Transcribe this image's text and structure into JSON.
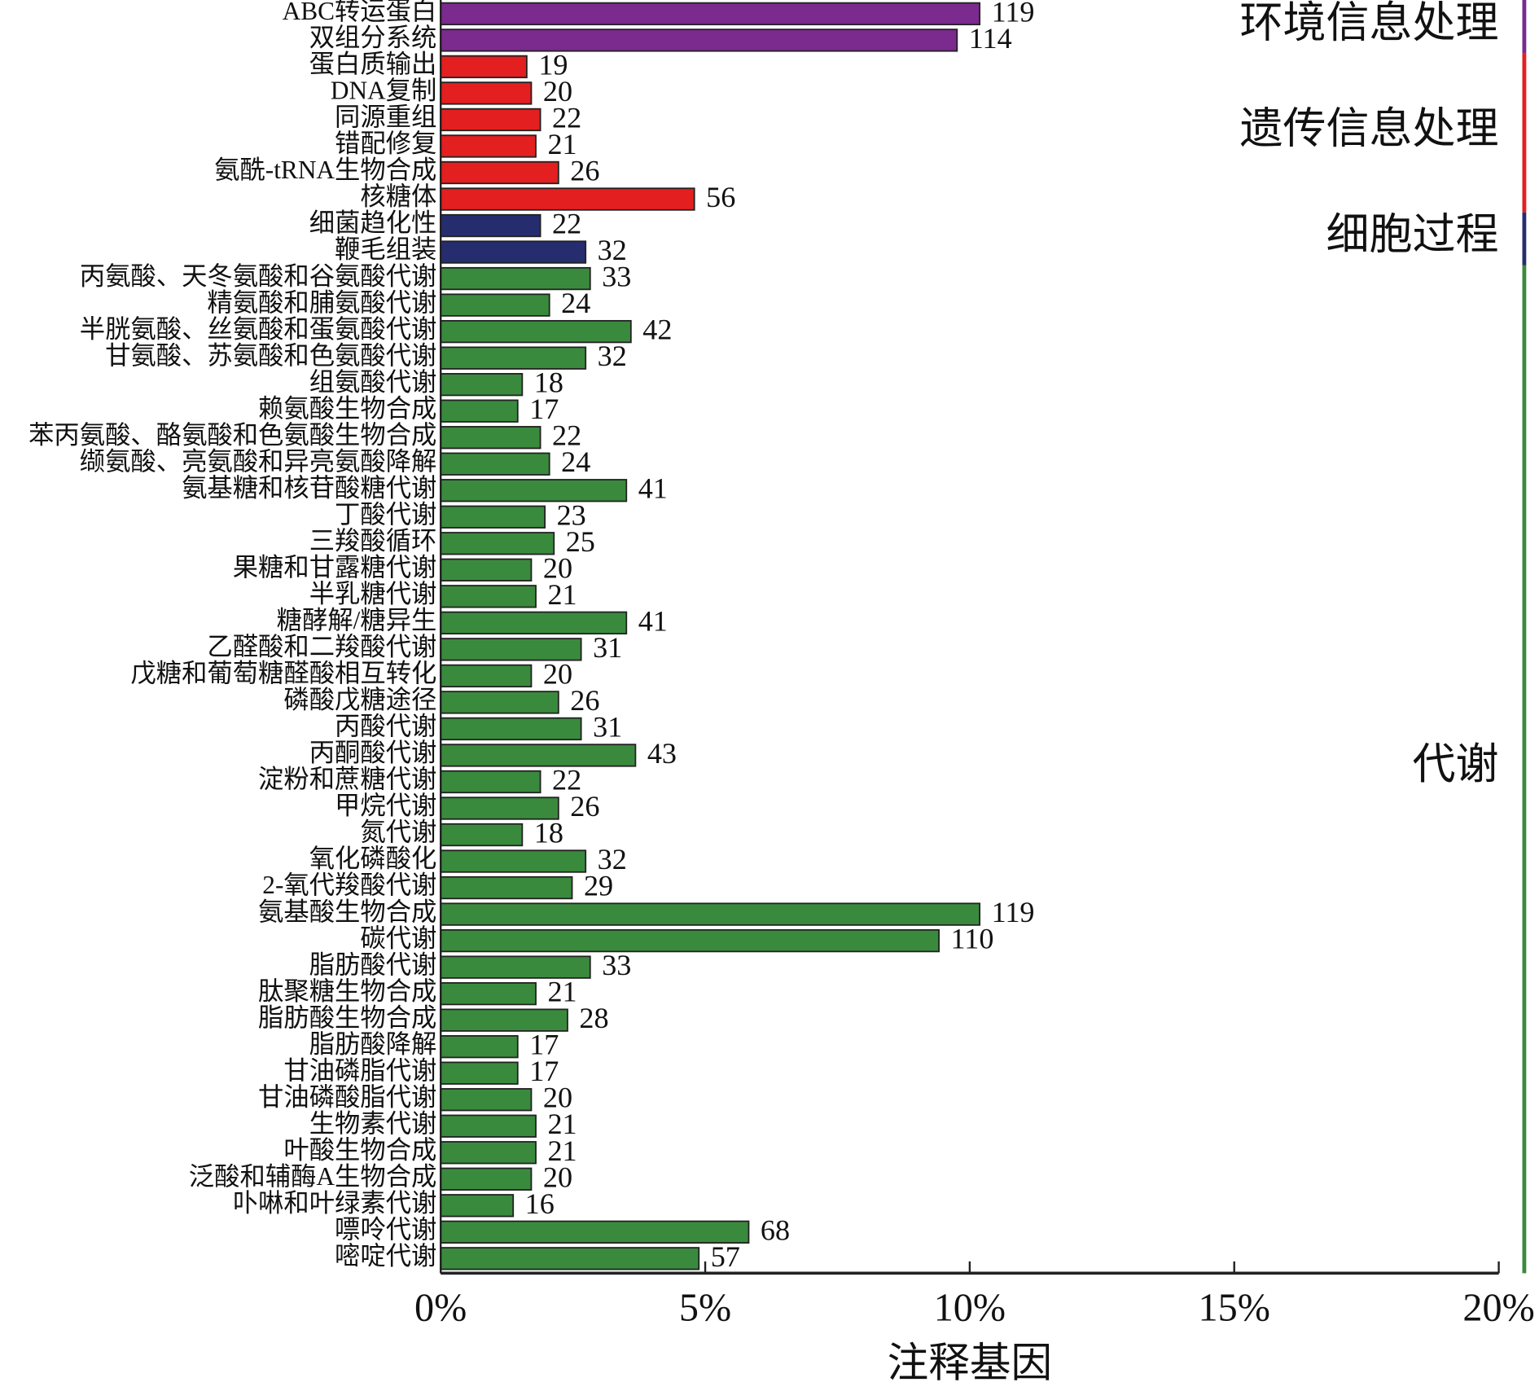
{
  "chart_data": {
    "type": "bar",
    "orientation": "horizontal",
    "x_label": "注释基因",
    "categories": [
      "ABC转运蛋白",
      "双组分系统",
      "蛋白质输出",
      "DNA复制",
      "同源重组",
      "错配修复",
      "氨酰-tRNA生物合成",
      "核糖体",
      "细菌趋化性",
      "鞭毛组装",
      "丙氨酸、天冬氨酸和谷氨酸代谢",
      "精氨酸和脯氨酸代谢",
      "半胱氨酸、丝氨酸和蛋氨酸代谢",
      "甘氨酸、苏氨酸和色氨酸代谢",
      "组氨酸代谢",
      "赖氨酸生物合成",
      "苯丙氨酸、酪氨酸和色氨酸生物合成",
      "缬氨酸、亮氨酸和异亮氨酸降解",
      "氨基糖和核苷酸糖代谢",
      "丁酸代谢",
      "三羧酸循环",
      "果糖和甘露糖代谢",
      "半乳糖代谢",
      "糖酵解/糖异生",
      "乙醛酸和二羧酸代谢",
      "戊糖和葡萄糖醛酸相互转化",
      "磷酸戊糖途径",
      "丙酸代谢",
      "丙酮酸代谢",
      "淀粉和蔗糖代谢",
      "甲烷代谢",
      "氮代谢",
      "氧化磷酸化",
      "2-氧代羧酸代谢",
      "氨基酸生物合成",
      "碳代谢",
      "脂肪酸代谢",
      "肽聚糖生物合成",
      "脂肪酸生物合成",
      "脂肪酸降解",
      "甘油磷脂代谢",
      "甘油磷酸脂代谢",
      "生物素代谢",
      "叶酸生物合成",
      "泛酸和辅酶A生物合成",
      "卟啉和叶绿素代谢",
      "嘌呤代谢",
      "嘧啶代谢"
    ],
    "values": [
      119,
      114,
      19,
      20,
      22,
      21,
      26,
      56,
      22,
      32,
      33,
      24,
      42,
      32,
      18,
      17,
      22,
      24,
      41,
      23,
      25,
      20,
      21,
      41,
      31,
      20,
      26,
      31,
      43,
      22,
      26,
      18,
      32,
      29,
      119,
      110,
      33,
      21,
      28,
      17,
      17,
      20,
      21,
      21,
      20,
      16,
      68,
      57
    ],
    "groups": [
      {
        "name": "环境信息处理",
        "color": "#7b2a8e",
        "count": 2
      },
      {
        "name": "遗传信息处理",
        "color": "#e41f1f",
        "count": 6
      },
      {
        "name": "细胞过程",
        "color": "#262d6e",
        "count": 2
      },
      {
        "name": "代谢",
        "color": "#3a8a3e",
        "count": 38
      }
    ],
    "xlim": [
      0,
      233.6
    ],
    "xticks": [
      {
        "value": 0,
        "label": "0%"
      },
      {
        "value": 58.4,
        "label": "5%"
      },
      {
        "value": 116.8,
        "label": "10%"
      },
      {
        "value": 175.2,
        "label": "15%"
      },
      {
        "value": 233.6,
        "label": "20%"
      }
    ]
  }
}
